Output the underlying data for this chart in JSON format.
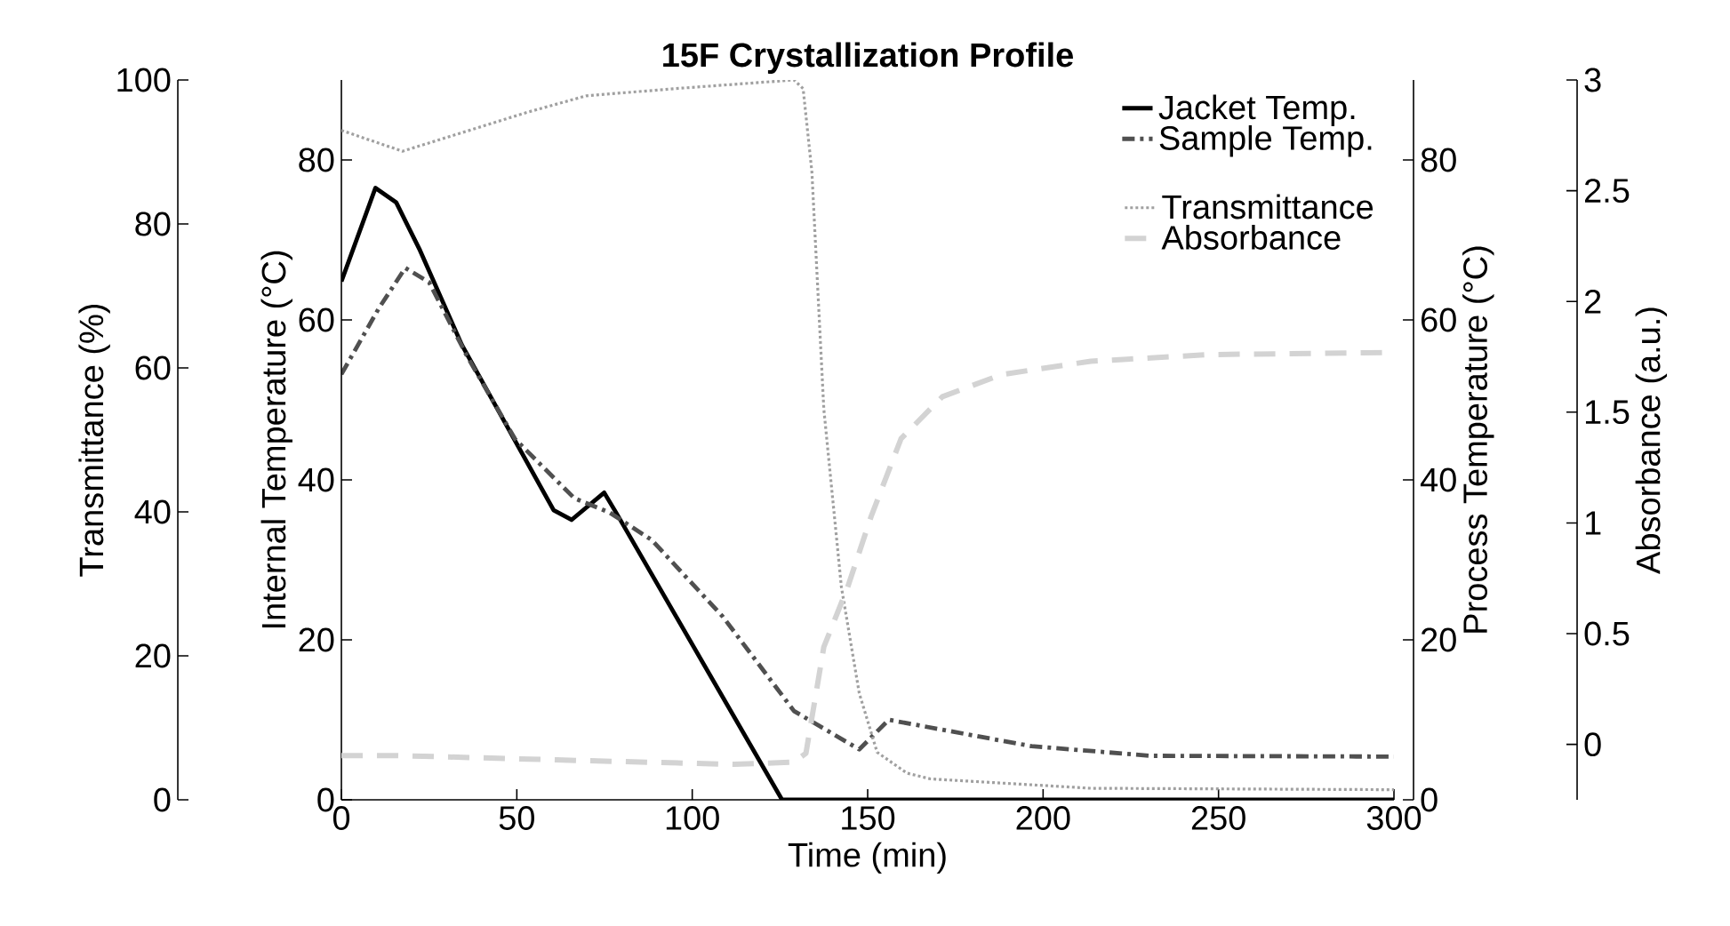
{
  "chart_data": [
    {
      "type": "line",
      "title": "15F Crystallization Profile",
      "xlabel": "Time (min)",
      "ylabel": "Internal Temperature (°C)",
      "y2label": "Process Temperature (°C)",
      "xlim": [
        0,
        300
      ],
      "xticks": [
        0,
        50,
        100,
        150,
        200,
        250,
        300
      ],
      "ylim": [
        0,
        90
      ],
      "yticks": [
        0,
        20,
        40,
        60,
        80
      ],
      "y2lim": [
        0,
        90
      ],
      "y2ticks": [
        0,
        20,
        40,
        60,
        80
      ],
      "legend": "top right",
      "series": [
        {
          "name": "Jacket Temp.",
          "color": "#000000",
          "line_style": "solid",
          "x": [
            0,
            9.7,
            15.6,
            22.4,
            34.3,
            60.5,
            65.6,
            74.9,
            78.3,
            125.6,
            200,
            300
          ],
          "values": [
            64.8,
            76.5,
            74.7,
            68.7,
            56.9,
            36.2,
            35.0,
            38.4,
            35.9,
            0,
            0,
            0
          ]
        },
        {
          "name": "Sample Temp.",
          "color": "#505050",
          "line_style": "dashdot",
          "x": [
            0,
            10.6,
            18.2,
            25,
            35.9,
            49.5,
            66.4,
            76.5,
            88.4,
            108.7,
            129,
            147.6,
            156,
            196.7,
            230.6,
            300
          ],
          "values": [
            53.2,
            61.4,
            66.5,
            64.7,
            55.4,
            45.1,
            37.7,
            35.9,
            32.5,
            22.9,
            11.1,
            6.3,
            10.0,
            6.7,
            5.5,
            5.4
          ]
        }
      ]
    },
    {
      "type": "line",
      "ylabel": "Transmittance (%)",
      "y2label": "Absorbance (a.u.)",
      "xlim": [
        0,
        300
      ],
      "tick_labels": "y",
      "ylim": [
        0,
        100
      ],
      "yticks": [
        0,
        20,
        40,
        60,
        80,
        100
      ],
      "y2lim": [
        -0.25,
        3
      ],
      "y2ticks": [
        0,
        0.5,
        1,
        1.5,
        2,
        2.5,
        3
      ],
      "legend": "top right",
      "series": [
        {
          "name": "Transmittance",
          "color": "#a0a0a0",
          "line_style": "dotted",
          "x": [
            0,
            17.4,
            52.9,
            69.8,
            95.2,
            129,
            131.6,
            134.1,
            137.5,
            142.5,
            147.6,
            152.7,
            161.2,
            167.9,
            213.6,
            300
          ],
          "values": [
            93.0,
            90.1,
            95.5,
            97.8,
            98.8,
            100,
            98.8,
            87.2,
            54.3,
            29.6,
            14.8,
            6.6,
            3.7,
            2.9,
            1.6,
            1.4
          ]
        },
        {
          "name": "Absorbance",
          "color": "#d3d3d3",
          "line_style": "dashed",
          "axis": "y2",
          "x": [
            0,
            15.6,
            61.3,
            112,
            129,
            132.4,
            137.5,
            144.3,
            151,
            159.5,
            171.3,
            188.2,
            213.6,
            247.5,
            300
          ],
          "values": [
            -0.05,
            -0.05,
            -0.07,
            -0.09,
            -0.08,
            -0.04,
            0.44,
            0.71,
            1.03,
            1.38,
            1.57,
            1.67,
            1.73,
            1.76,
            1.77
          ]
        }
      ]
    }
  ]
}
